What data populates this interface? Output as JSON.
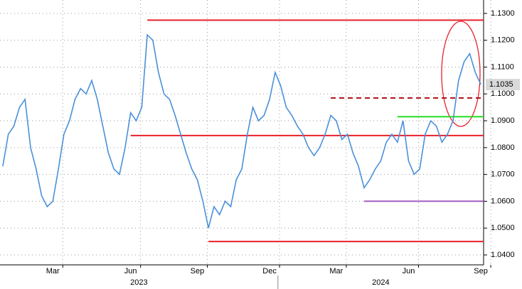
{
  "chart_data": {
    "type": "line",
    "categories": [
      null,
      null,
      null,
      null,
      null,
      null,
      null,
      null,
      null,
      "Mar",
      null,
      null,
      null,
      null,
      null,
      null,
      null,
      null,
      null,
      null,
      null,
      null,
      null,
      "Jun",
      null,
      null,
      null,
      null,
      null,
      null,
      null,
      null,
      null,
      null,
      null,
      "Sep",
      null,
      null,
      null,
      null,
      null,
      null,
      null,
      null,
      null,
      null,
      null,
      null,
      "Dec",
      null,
      null,
      null,
      null,
      null,
      null,
      null,
      null,
      null,
      null,
      null,
      "Mar",
      null,
      null,
      null,
      null,
      null,
      null,
      null,
      null,
      null,
      null,
      null,
      null,
      "Jun",
      null,
      null,
      null,
      null,
      null,
      null,
      null,
      null,
      null,
      null,
      null,
      null,
      "Sep"
    ],
    "series": [
      {
        "color": "#4a90d9",
        "values": [
          1.073,
          1.085,
          1.088,
          1.095,
          1.098,
          1.08,
          1.072,
          1.062,
          1.058,
          1.06,
          1.072,
          1.085,
          1.09,
          1.098,
          1.102,
          1.1,
          1.105,
          1.098,
          1.088,
          1.078,
          1.072,
          1.07,
          1.08,
          1.093,
          1.09,
          1.095,
          1.122,
          1.12,
          1.108,
          1.1,
          1.098,
          1.092,
          1.085,
          1.078,
          1.072,
          1.068,
          1.06,
          1.05,
          1.058,
          1.055,
          1.06,
          1.058,
          1.068,
          1.072,
          1.085,
          1.095,
          1.09,
          1.092,
          1.098,
          1.108,
          1.103,
          1.095,
          1.092,
          1.088,
          1.085,
          1.08,
          1.077,
          1.08,
          1.085,
          1.092,
          1.09,
          1.083,
          1.085,
          1.078,
          1.073,
          1.065,
          1.068,
          1.072,
          1.075,
          1.082,
          1.085,
          1.082,
          1.09,
          1.075,
          1.07,
          1.072,
          1.085,
          1.09,
          1.088,
          1.082,
          1.085,
          1.09,
          1.105,
          1.112,
          1.115,
          1.108,
          1.1035
        ]
      }
    ],
    "x_groups": [
      {
        "label": "2023",
        "start": 0
      },
      {
        "label": "2024",
        "start": 50
      }
    ],
    "levels": [
      {
        "value": 1.1275,
        "start": 26,
        "color": "#e8202a",
        "style": "solid"
      },
      {
        "value": 1.0845,
        "start": 23,
        "color": "#e8202a",
        "style": "solid"
      },
      {
        "value": 1.045,
        "start": 37,
        "color": "#e8202a",
        "style": "solid"
      },
      {
        "value": 1.0985,
        "start": 59,
        "color": "#b0141c",
        "style": "dashed"
      },
      {
        "value": 1.0915,
        "start": 71,
        "color": "#22dd22",
        "style": "solid"
      },
      {
        "value": 1.06,
        "start": 65,
        "color": "#a05cc0",
        "style": "solid"
      }
    ],
    "ylim": [
      1.0363,
      1.135
    ],
    "yticks": [
      {
        "value": 1.04,
        "label": "1.0400"
      },
      {
        "value": 1.05,
        "label": "1.0500"
      },
      {
        "value": 1.06,
        "label": "1.0600"
      },
      {
        "value": 1.07,
        "label": "1.0700"
      },
      {
        "value": 1.08,
        "label": "1.0800"
      },
      {
        "value": 1.09,
        "label": "1.0900"
      },
      {
        "value": 1.1,
        "label": "1.1000"
      },
      {
        "value": 1.11,
        "label": "1.1100"
      },
      {
        "value": 1.12,
        "label": "1.1200"
      },
      {
        "value": 1.13,
        "label": "1.1300"
      }
    ],
    "grid": true
  }
}
